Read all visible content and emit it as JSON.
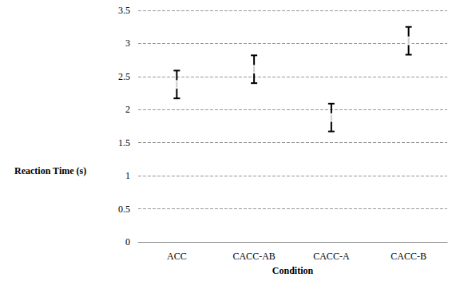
{
  "chart_data": {
    "type": "scatter",
    "x_label": "Condition",
    "y_label": "Reaction Time (s)",
    "categories": [
      "ACC",
      "CACC-AB",
      "CACC-A",
      "CACC-B"
    ],
    "values": [
      2.38,
      2.61,
      1.88,
      3.04
    ],
    "yerr": [
      0.21,
      0.21,
      0.21,
      0.21
    ],
    "color": "#000000",
    "marker": "circle",
    "ylim": [
      0,
      3.5
    ],
    "yticks": [
      0,
      0.5,
      1,
      1.5,
      2,
      2.5,
      3,
      3.5
    ],
    "grid": true
  }
}
